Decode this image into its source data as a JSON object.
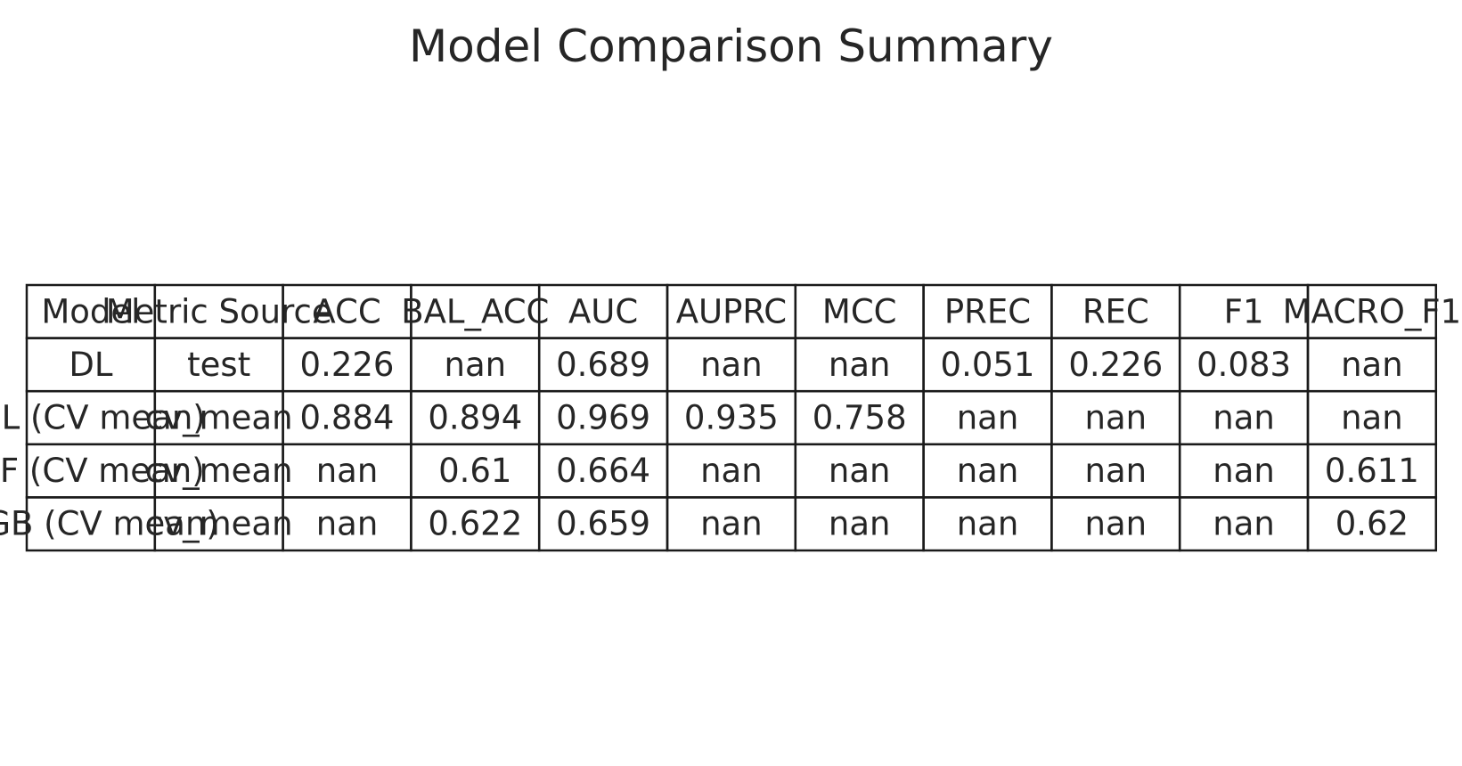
{
  "chart_data": {
    "type": "table",
    "title": "Model Comparison Summary",
    "columns": [
      "Model",
      "Metric Source",
      "ACC",
      "BAL_ACC",
      "AUC",
      "AUPRC",
      "MCC",
      "PREC",
      "REC",
      "F1",
      "MACRO_F1"
    ],
    "rows": [
      [
        "DL",
        "test",
        "0.226",
        "nan",
        "0.689",
        "nan",
        "nan",
        "0.051",
        "0.226",
        "0.083",
        "nan"
      ],
      [
        "DL (CV mean)",
        "cv_mean",
        "0.884",
        "0.894",
        "0.969",
        "0.935",
        "0.758",
        "nan",
        "nan",
        "nan",
        "nan"
      ],
      [
        "RF (CV mean)",
        "cv_mean",
        "nan",
        "0.61",
        "0.664",
        "nan",
        "nan",
        "nan",
        "nan",
        "nan",
        "0.611"
      ],
      [
        "XGB (CV mean)",
        "cv_mean",
        "nan",
        "0.622",
        "0.659",
        "nan",
        "nan",
        "nan",
        "nan",
        "nan",
        "0.62"
      ]
    ]
  }
}
